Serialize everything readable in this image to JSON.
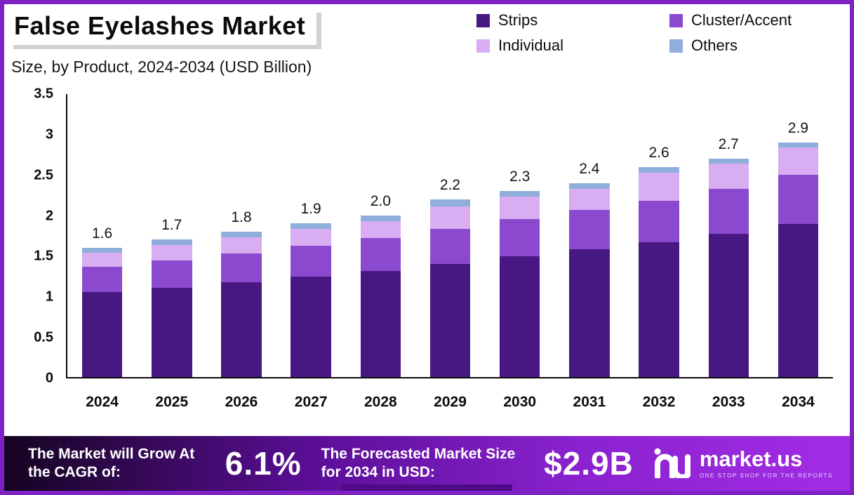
{
  "header": {
    "title": "False Eyelashes Market",
    "subtitle": "Size, by Product, 2024-2034 (USD Billion)"
  },
  "chart_data": {
    "type": "bar",
    "stacked": true,
    "title": "False Eyelashes Market Size, by Product, 2024-2034 (USD Billion)",
    "xlabel": "",
    "ylabel": "USD Billion",
    "ylim": [
      0,
      3.5
    ],
    "yticks": [
      "3.5",
      "3",
      "2.5",
      "2",
      "1.5",
      "1",
      "0.5",
      "0"
    ],
    "grid": false,
    "legend_position": "top-right",
    "categories": [
      "2024",
      "2025",
      "2026",
      "2027",
      "2028",
      "2029",
      "2030",
      "2031",
      "2032",
      "2033",
      "2034"
    ],
    "series": [
      {
        "name": "Strips",
        "color": "#471782",
        "values": [
          1.05,
          1.1,
          1.17,
          1.24,
          1.31,
          1.4,
          1.49,
          1.58,
          1.67,
          1.77,
          1.89
        ]
      },
      {
        "name": "Cluster/Accent",
        "color": "#8a49cf",
        "values": [
          0.31,
          0.34,
          0.36,
          0.38,
          0.41,
          0.43,
          0.46,
          0.49,
          0.51,
          0.56,
          0.61
        ]
      },
      {
        "name": "Individual",
        "color": "#d8adf2",
        "values": [
          0.18,
          0.19,
          0.2,
          0.21,
          0.21,
          0.28,
          0.28,
          0.26,
          0.35,
          0.31,
          0.34
        ]
      },
      {
        "name": "Others",
        "color": "#90aedc",
        "values": [
          0.06,
          0.07,
          0.07,
          0.07,
          0.07,
          0.09,
          0.07,
          0.07,
          0.07,
          0.06,
          0.06
        ]
      }
    ],
    "totals": [
      "1.6",
      "1.7",
      "1.8",
      "1.9",
      "2.0",
      "2.2",
      "2.3",
      "2.4",
      "2.6",
      "2.7",
      "2.9"
    ]
  },
  "footer": {
    "cagr_label": "The Market will Grow At the CAGR of:",
    "cagr_value": "6.1%",
    "forecast_label": "The Forecasted Market Size for 2034 in USD:",
    "forecast_value": "$2.9B",
    "brand": "market.us",
    "brand_tagline": "ONE STOP SHOP FOR THE REPORTS"
  }
}
